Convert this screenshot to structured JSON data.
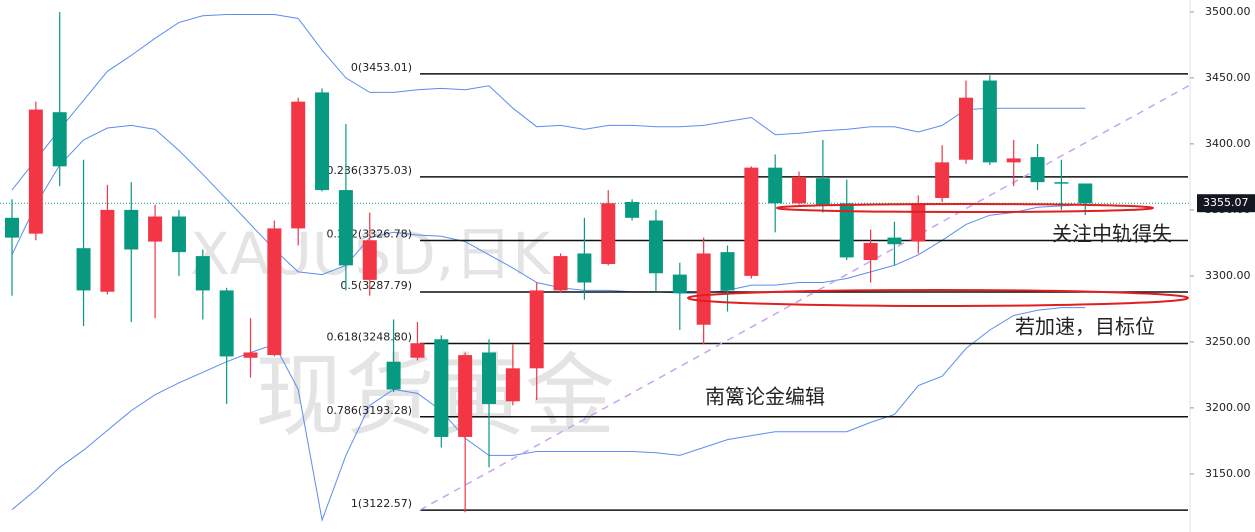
{
  "chart_data": {
    "type": "candlestick",
    "watermark": [
      "XAUUSD,日K",
      "现货黄金"
    ],
    "annotations": [
      "关注中轨得失",
      "若加速，目标位",
      "南篱论金编辑"
    ],
    "ylim": [
      3106,
      3509
    ],
    "yticks": [
      {
        "value": 3150,
        "label": "3150.00"
      },
      {
        "value": 3200,
        "label": "3200.00"
      },
      {
        "value": 3250,
        "label": "3250.00"
      },
      {
        "value": 3300,
        "label": "3300.00"
      },
      {
        "value": 3350,
        "label": "3350.00"
      },
      {
        "value": 3400,
        "label": "3400.00"
      },
      {
        "value": 3450,
        "label": "3450.00"
      },
      {
        "value": 3500,
        "label": "3500.00"
      }
    ],
    "last_price": {
      "value": 3355.07,
      "label": "3355.07"
    },
    "fib_levels": [
      {
        "label": "0(3453.01)",
        "value": 3453.01
      },
      {
        "label": "0.236(3375.03)",
        "value": 3375.03
      },
      {
        "label": "0.382(3326.78)",
        "value": 3326.78
      },
      {
        "label": "0.5(3287.79)",
        "value": 3287.79
      },
      {
        "label": "0.618(3248.80)",
        "value": 3248.8
      },
      {
        "label": "0.786(3193.28)",
        "value": 3193.28
      },
      {
        "label": "1(3122.57)",
        "value": 3122.57
      }
    ],
    "up_color": "#f23645",
    "down_color": "#089981",
    "open": [
      3344,
      3332,
      3424,
      3321,
      3288,
      3350,
      3326,
      3345,
      3315,
      3289,
      3238,
      3240,
      3336,
      3439,
      3365,
      3297,
      3235,
      3238,
      3252,
      3178,
      3242,
      3205,
      3230,
      3289,
      3317,
      3309,
      3356,
      3342,
      3301,
      3263,
      3318,
      3300,
      3382,
      3355,
      3374,
      3355,
      3312,
      3329,
      3326,
      3359,
      3388,
      3448,
      3386,
      3390,
      3371,
      3370
    ],
    "high": [
      3358,
      3432,
      3500,
      3388,
      3369,
      3371,
      3354,
      3350,
      3320,
      3291,
      3268,
      3342,
      3435,
      3442,
      3415,
      3348,
      3267,
      3265,
      3255,
      3242,
      3252,
      3248,
      3295,
      3317,
      3344,
      3365,
      3358,
      3350,
      3310,
      3329,
      3323,
      3383,
      3392,
      3379,
      3403,
      3373,
      3335,
      3341,
      3361,
      3399,
      3448,
      3452,
      3403,
      3400,
      3388,
      3370
    ],
    "low": [
      3285,
      3327,
      3368,
      3262,
      3286,
      3265,
      3268,
      3300,
      3267,
      3203,
      3223,
      3239,
      3323,
      3364,
      3289,
      3285,
      3212,
      3236,
      3170,
      3121,
      3155,
      3202,
      3206,
      3287,
      3282,
      3308,
      3342,
      3288,
      3259,
      3248,
      3273,
      3298,
      3333,
      3354,
      3348,
      3312,
      3295,
      3308,
      3317,
      3356,
      3385,
      3384,
      3368,
      3365,
      3350,
      3346
    ],
    "close": [
      3329,
      3426,
      3383,
      3289,
      3350,
      3320,
      3345,
      3318,
      3289,
      3239,
      3242,
      3336,
      3432,
      3365,
      3308,
      3327,
      3214,
      3249,
      3178,
      3240,
      3203,
      3230,
      3289,
      3315,
      3295,
      3355,
      3344,
      3302,
      3287,
      3317,
      3289,
      3382,
      3355,
      3375,
      3353,
      3314,
      3325,
      3324,
      3355,
      3386,
      3435,
      3386,
      3389,
      3371,
      3370,
      3355
    ],
    "bands": [
      {
        "color": "#5b8def",
        "values": [
          3365,
          3388,
          3411,
          3433,
          3455,
          3467,
          3480,
          3492,
          3497,
          3498,
          3498,
          3498,
          3495,
          3471,
          3450,
          3439,
          3439,
          3441,
          3442,
          3441,
          3444,
          3427,
          3413,
          3414,
          3411,
          3414,
          3414,
          3413,
          3413,
          3414,
          3417,
          3420,
          3407,
          3408,
          3410,
          3411,
          3413,
          3413,
          3409,
          3414,
          3426,
          3427,
          3427,
          3427,
          3427,
          3427
        ]
      },
      {
        "color": "#5b8def",
        "values": [
          3316,
          3354,
          3384,
          3403,
          3412,
          3414,
          3411,
          3395,
          3377,
          3358,
          3339,
          3320,
          3303,
          3301,
          3308,
          3329,
          3333,
          3331,
          3330,
          3326,
          3316,
          3306,
          3295,
          3291,
          3289,
          3289,
          3288,
          3288,
          3287,
          3287,
          3289,
          3293,
          3293,
          3295,
          3295,
          3298,
          3303,
          3308,
          3316,
          3327,
          3339,
          3346,
          3348,
          3352,
          3353,
          3354
        ]
      },
      {
        "color": "#5b8def",
        "values": [
          3123,
          3138,
          3155,
          3168,
          3183,
          3198,
          3210,
          3219,
          3227,
          3235,
          3242,
          3248,
          3214,
          3115,
          3164,
          3202,
          3214,
          3211,
          3198,
          3177,
          3164,
          3164,
          3167,
          3167,
          3167,
          3167,
          3167,
          3166,
          3164,
          3170,
          3176,
          3179,
          3182,
          3182,
          3182,
          3182,
          3189,
          3195,
          3217,
          3224,
          3245,
          3259,
          3270,
          3274,
          3276,
          3276
        ]
      }
    ]
  }
}
